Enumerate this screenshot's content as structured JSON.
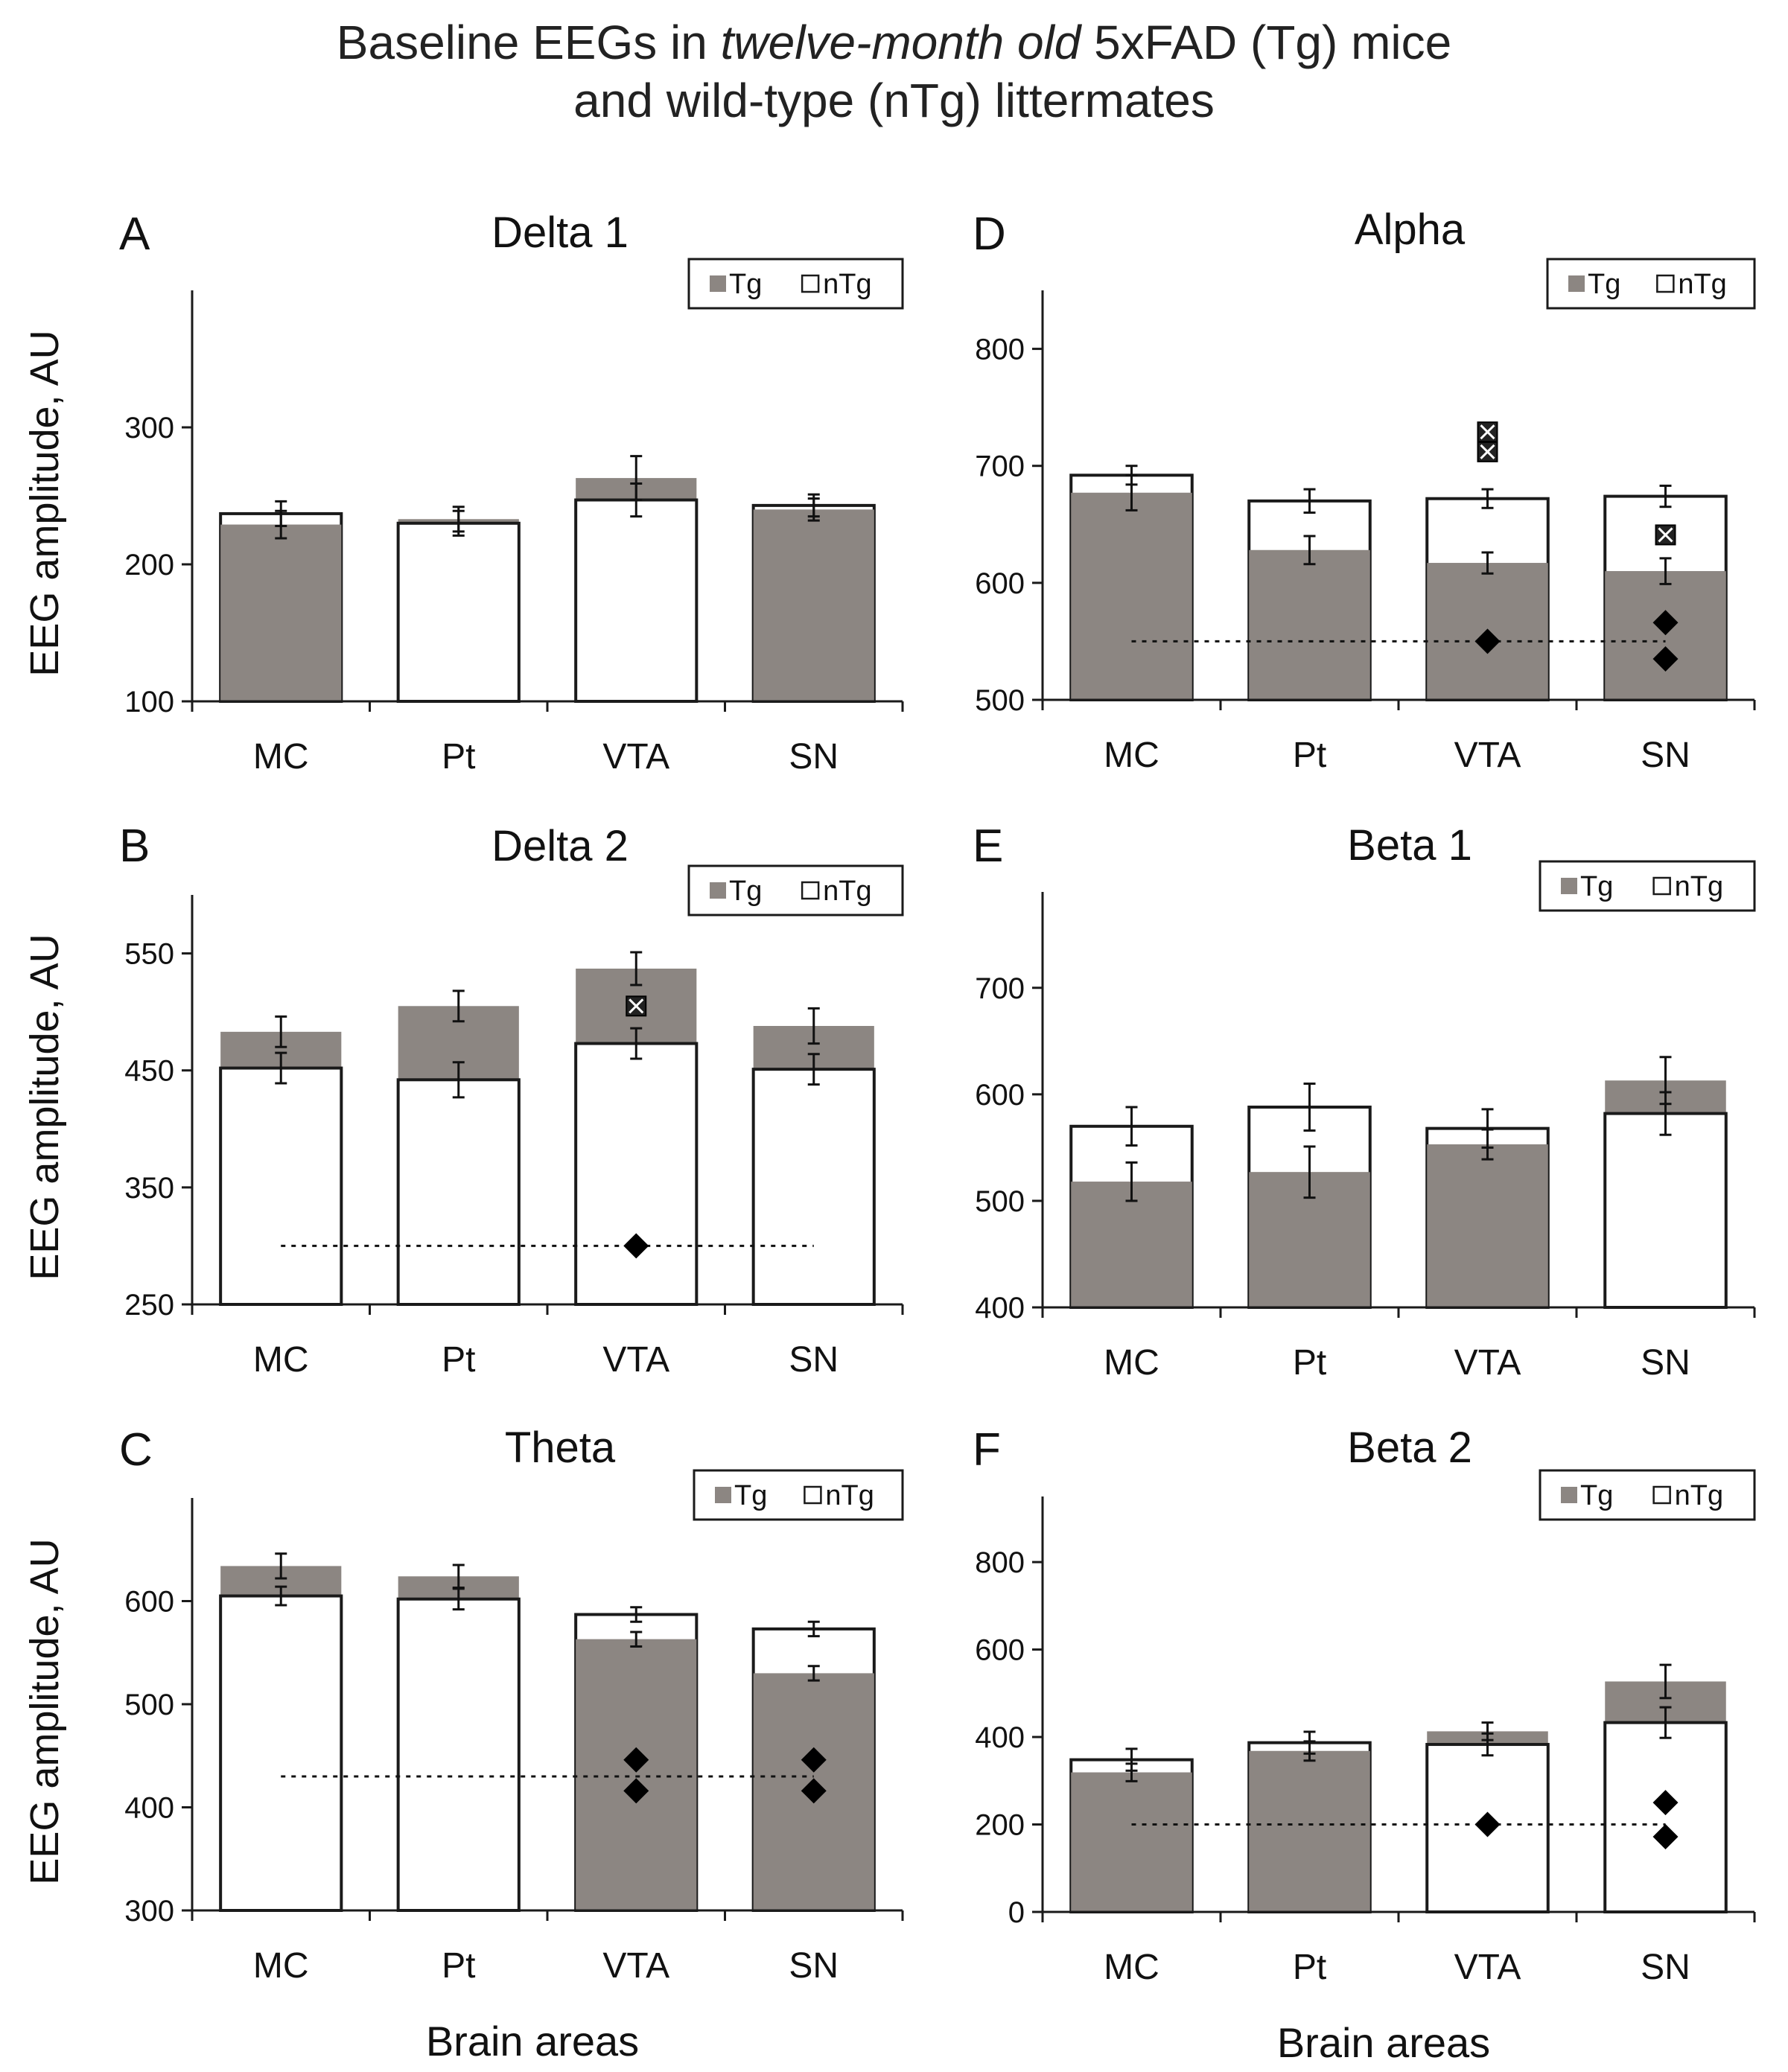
{
  "figure": {
    "title_pre": "Baseline EEGs in ",
    "title_italic": "twelve-month old",
    "title_post": " 5xFAD (Tg) mice",
    "title_line2": "and wild-type (nTg) littermates"
  },
  "colors": {
    "tg": "#8c8682",
    "ntg": "#ffffff",
    "axis": "#1a1a1a",
    "marker": "#000000"
  },
  "legend": {
    "tg": "Tg",
    "ntg": "nTg"
  },
  "chart_data": [
    {
      "panel": "A",
      "title": "Delta 1",
      "type": "bar",
      "categories": [
        "MC",
        "Pt",
        "VTA",
        "SN"
      ],
      "ylabel": "EEG amplitude, AU",
      "xlabel": "",
      "ylim": [
        100,
        400
      ],
      "yticks": [
        100,
        200,
        300
      ],
      "series": [
        {
          "name": "Tg",
          "values": [
            229,
            233,
            263,
            240
          ],
          "errors": [
            10,
            9,
            16,
            8
          ]
        },
        {
          "name": "nTg",
          "values": [
            237,
            230,
            247,
            243
          ],
          "errors": [
            9,
            9,
            12,
            8
          ]
        }
      ],
      "significance_line": null,
      "diamonds": [],
      "crossed_squares": []
    },
    {
      "panel": "D",
      "title": "Alpha",
      "type": "bar",
      "categories": [
        "MC",
        "Pt",
        "VTA",
        "SN"
      ],
      "ylabel": "",
      "xlabel": "",
      "ylim": [
        500,
        850
      ],
      "yticks": [
        500,
        600,
        700,
        800
      ],
      "series": [
        {
          "name": "Tg",
          "values": [
            677,
            628,
            617,
            610
          ],
          "errors": [
            15,
            12,
            9,
            11
          ]
        },
        {
          "name": "nTg",
          "values": [
            692,
            670,
            672,
            674
          ],
          "errors": [
            8,
            10,
            8,
            9
          ]
        }
      ],
      "significance_line": 550,
      "diamonds": [
        {
          "category": "VTA",
          "value": 550
        },
        {
          "category": "SN",
          "value": 566
        },
        {
          "category": "SN",
          "value": 535
        }
      ],
      "crossed_squares": [
        {
          "category": "VTA",
          "value": 729
        },
        {
          "category": "VTA",
          "value": 712
        },
        {
          "category": "SN",
          "value": 641
        }
      ]
    },
    {
      "panel": "B",
      "title": "Delta 2",
      "type": "bar",
      "categories": [
        "MC",
        "Pt",
        "VTA",
        "SN"
      ],
      "ylabel": "EEG amplitude, AU",
      "xlabel": "",
      "ylim": [
        250,
        600
      ],
      "yticks": [
        250,
        350,
        450,
        550
      ],
      "series": [
        {
          "name": "Tg",
          "values": [
            483,
            505,
            537,
            488
          ],
          "errors": [
            13,
            13,
            14,
            15
          ]
        },
        {
          "name": "nTg",
          "values": [
            452,
            442,
            473,
            451
          ],
          "errors": [
            13,
            15,
            13,
            13
          ]
        }
      ],
      "significance_line": 300,
      "diamonds": [
        {
          "category": "VTA",
          "value": 300
        }
      ],
      "crossed_squares": [
        {
          "category": "VTA",
          "value": 505
        }
      ]
    },
    {
      "panel": "E",
      "title": "Beta 1",
      "type": "bar",
      "categories": [
        "MC",
        "Pt",
        "VTA",
        "SN"
      ],
      "ylabel": "",
      "xlabel": "",
      "ylim": [
        400,
        790
      ],
      "yticks": [
        400,
        500,
        600,
        700
      ],
      "series": [
        {
          "name": "Tg",
          "values": [
            518,
            527,
            553,
            613
          ],
          "errors": [
            18,
            24,
            14,
            22
          ]
        },
        {
          "name": "nTg",
          "values": [
            570,
            588,
            568,
            582
          ],
          "errors": [
            18,
            22,
            18,
            20
          ]
        }
      ],
      "significance_line": null,
      "diamonds": [],
      "crossed_squares": []
    },
    {
      "panel": "C",
      "title": "Theta",
      "type": "bar",
      "categories": [
        "MC",
        "Pt",
        "VTA",
        "SN"
      ],
      "ylabel": "EEG amplitude, AU",
      "xlabel": "Brain areas",
      "ylim": [
        300,
        700
      ],
      "yticks": [
        300,
        400,
        500,
        600
      ],
      "series": [
        {
          "name": "Tg",
          "values": [
            634,
            624,
            563,
            530
          ],
          "errors": [
            12,
            11,
            7,
            7
          ]
        },
        {
          "name": "nTg",
          "values": [
            605,
            602,
            587,
            573
          ],
          "errors": [
            9,
            10,
            7,
            7
          ]
        }
      ],
      "significance_line": 430,
      "diamonds": [
        {
          "category": "VTA",
          "value": 446
        },
        {
          "category": "VTA",
          "value": 416
        },
        {
          "category": "SN",
          "value": 446
        },
        {
          "category": "SN",
          "value": 416
        }
      ],
      "crossed_squares": []
    },
    {
      "panel": "F",
      "title": "Beta 2",
      "type": "bar",
      "categories": [
        "MC",
        "Pt",
        "VTA",
        "SN"
      ],
      "ylabel": "",
      "xlabel": "Brain areas",
      "ylim": [
        0,
        950
      ],
      "yticks": [
        0,
        200,
        400,
        600,
        800
      ],
      "series": [
        {
          "name": "Tg",
          "values": [
            319,
            368,
            413,
            527
          ],
          "errors": [
            20,
            22,
            20,
            38
          ]
        },
        {
          "name": "nTg",
          "values": [
            348,
            387,
            383,
            433
          ],
          "errors": [
            25,
            25,
            25,
            35
          ]
        }
      ],
      "significance_line": 200,
      "diamonds": [
        {
          "category": "VTA",
          "value": 200
        },
        {
          "category": "SN",
          "value": 250
        },
        {
          "category": "SN",
          "value": 172
        }
      ],
      "crossed_squares": []
    }
  ]
}
